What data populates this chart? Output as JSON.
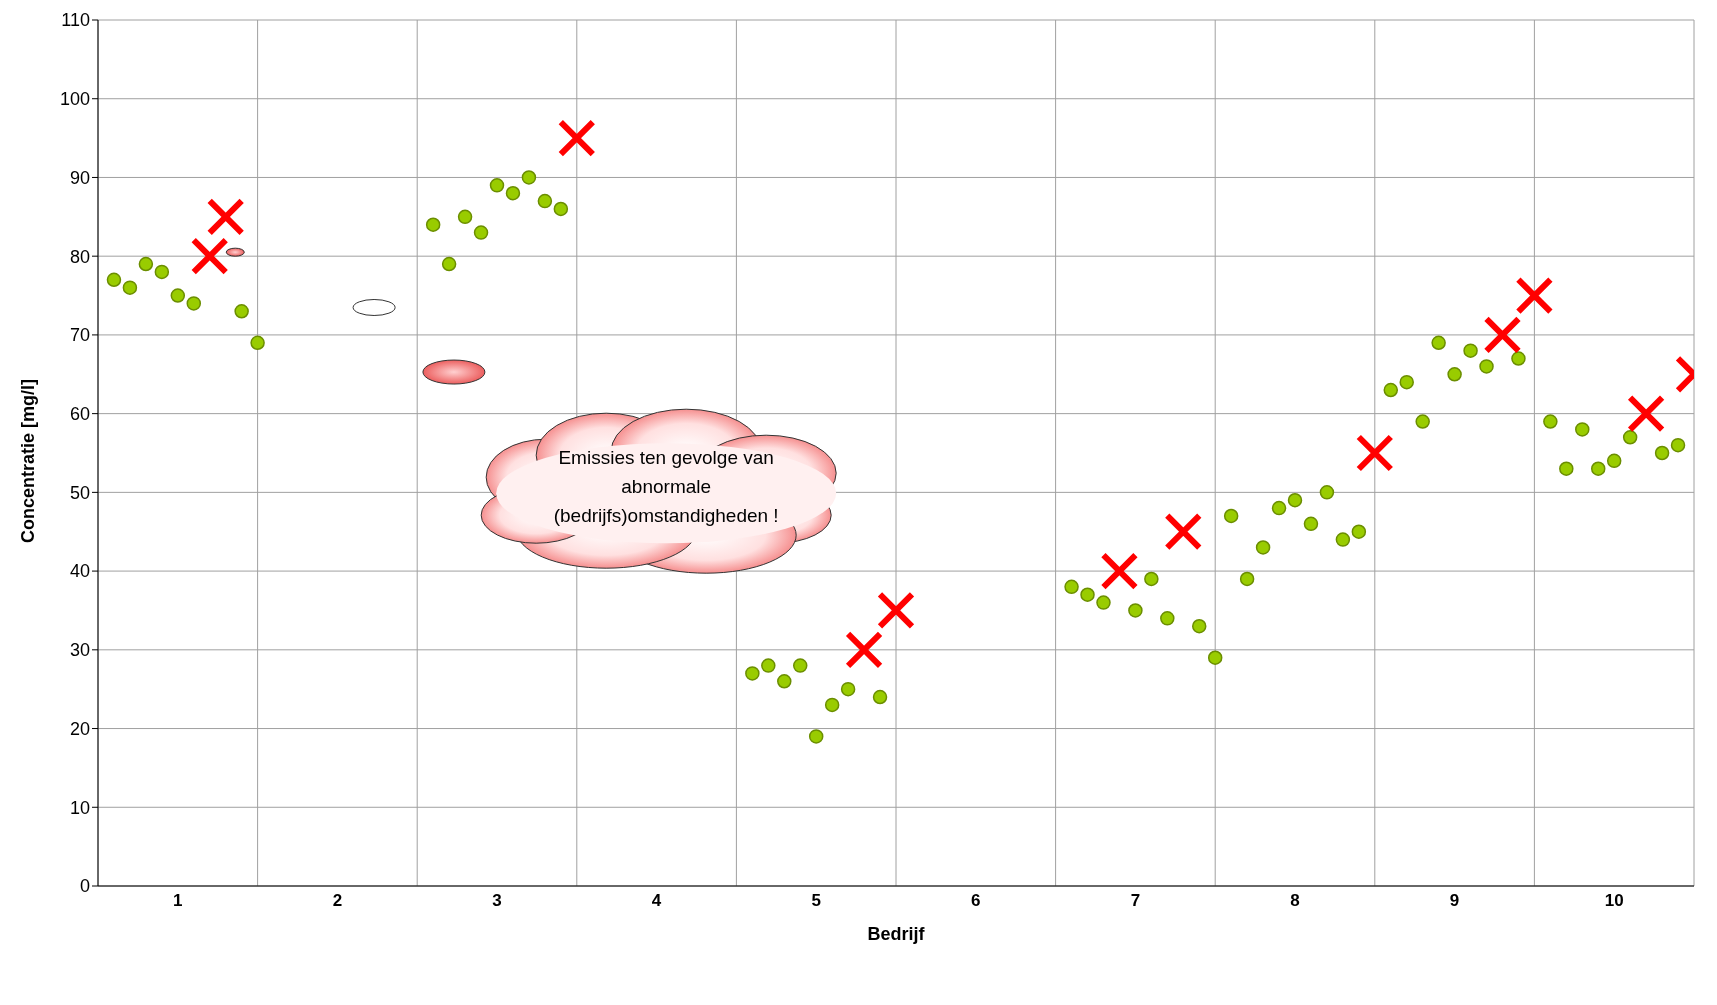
{
  "chart_data": {
    "type": "scatter",
    "xlabel": "Bedrijf",
    "ylabel": "Concentratie [mg/l]",
    "xlim": [
      0.5,
      10.5
    ],
    "xticks": [
      {
        "value": 0.5,
        "label": null
      },
      1,
      {
        "value": 1.5,
        "label": null
      },
      2,
      {
        "value": 2.5,
        "label": null
      },
      3,
      {
        "value": 3.5,
        "label": null
      },
      4,
      {
        "value": 4.5,
        "label": null
      },
      5,
      {
        "value": 5.5,
        "label": null
      },
      6,
      {
        "value": 6.5,
        "label": null
      },
      7,
      {
        "value": 7.5,
        "label": null
      },
      8,
      {
        "value": 8.5,
        "label": null
      },
      9,
      {
        "value": 9.5,
        "label": null
      },
      10,
      {
        "value": 10.5,
        "label": null
      }
    ],
    "ylim": [
      0,
      110
    ],
    "yticks": [
      0,
      10,
      20,
      30,
      40,
      50,
      60,
      70,
      80,
      90,
      100,
      110
    ],
    "grid": true,
    "legend": false,
    "annotations": [
      "Emissies ten gevolge van abnormale (bedrijfs)omstandigheden !"
    ],
    "series": [
      {
        "marker": "circle",
        "color": "#99cc00",
        "x": [
          0.6,
          0.7,
          0.8,
          0.9,
          1.0,
          1.1,
          1.4,
          1.5,
          2.6,
          2.7,
          2.8,
          2.9,
          3.0,
          3.1,
          3.2,
          3.3,
          3.4,
          4.6,
          4.7,
          4.8,
          4.9,
          5.0,
          5.1,
          5.2,
          5.4,
          6.6,
          6.7,
          6.8,
          7.0,
          7.1,
          7.2,
          7.4,
          7.5,
          7.6,
          7.7,
          7.8,
          7.9,
          8.0,
          8.1,
          8.2,
          8.3,
          8.4,
          8.6,
          8.7,
          8.8,
          8.9,
          9.0,
          9.1,
          9.2,
          9.4,
          9.6,
          9.7,
          9.8,
          9.9,
          10.0,
          10.1,
          10.3,
          10.4
        ],
        "values": [
          77,
          76,
          79,
          78,
          75,
          74,
          73,
          69,
          84,
          79,
          85,
          83,
          89,
          88,
          90,
          87,
          86,
          27,
          28,
          26,
          28,
          19,
          23,
          25,
          24,
          38,
          37,
          36,
          35,
          39,
          34,
          33,
          29,
          47,
          39,
          43,
          48,
          49,
          46,
          50,
          44,
          45,
          63,
          64,
          59,
          69,
          65,
          68,
          66,
          67,
          59,
          53,
          58,
          53,
          54,
          57,
          55,
          56
        ]
      },
      {
        "marker": "cross",
        "color": "#ff0000",
        "x": [
          1.2,
          1.3,
          3.5,
          5.3,
          5.5,
          6.9,
          7.3,
          8.5,
          9.3,
          9.5,
          10.2,
          10.5
        ],
        "values": [
          80,
          85,
          95,
          30,
          35,
          40,
          45,
          55,
          70,
          75,
          60,
          65
        ]
      }
    ]
  }
}
